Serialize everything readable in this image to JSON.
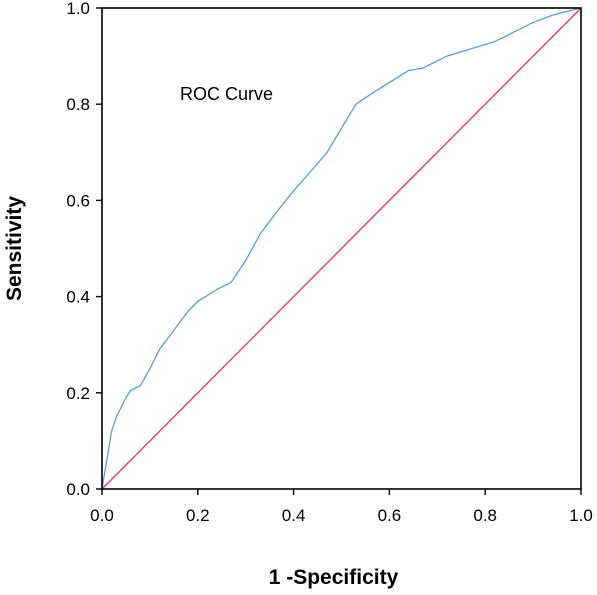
{
  "chart_data": {
    "type": "line",
    "title": "",
    "annotation": "ROC Curve",
    "xlabel": "1 -Specificity",
    "ylabel": "Sensitivity",
    "xlim": [
      0,
      1
    ],
    "ylim": [
      0,
      1
    ],
    "x_ticks": [
      "0.0",
      "0.2",
      "0.4",
      "0.6",
      "0.8",
      "1.0"
    ],
    "y_ticks": [
      "0.0",
      "0.2",
      "0.4",
      "0.6",
      "0.8",
      "1.0"
    ],
    "grid": false,
    "legend": "none",
    "series": [
      {
        "color": "#5b9bd5",
        "points": [
          [
            0,
            0
          ],
          [
            0.005,
            0.03
          ],
          [
            0.01,
            0.06
          ],
          [
            0.015,
            0.09
          ],
          [
            0.02,
            0.12
          ],
          [
            0.03,
            0.15
          ],
          [
            0.04,
            0.17
          ],
          [
            0.05,
            0.19
          ],
          [
            0.06,
            0.205
          ],
          [
            0.08,
            0.215
          ],
          [
            0.1,
            0.25
          ],
          [
            0.12,
            0.29
          ],
          [
            0.15,
            0.33
          ],
          [
            0.18,
            0.37
          ],
          [
            0.2,
            0.39
          ],
          [
            0.24,
            0.415
          ],
          [
            0.27,
            0.43
          ],
          [
            0.3,
            0.475
          ],
          [
            0.33,
            0.53
          ],
          [
            0.36,
            0.57
          ],
          [
            0.4,
            0.62
          ],
          [
            0.44,
            0.665
          ],
          [
            0.47,
            0.7
          ],
          [
            0.5,
            0.75
          ],
          [
            0.53,
            0.8
          ],
          [
            0.56,
            0.82
          ],
          [
            0.6,
            0.845
          ],
          [
            0.64,
            0.87
          ],
          [
            0.67,
            0.875
          ],
          [
            0.72,
            0.9
          ],
          [
            0.77,
            0.915
          ],
          [
            0.82,
            0.93
          ],
          [
            0.86,
            0.95
          ],
          [
            0.9,
            0.97
          ],
          [
            0.94,
            0.985
          ],
          [
            0.98,
            0.995
          ],
          [
            1,
            1
          ]
        ]
      },
      {
        "color": "#e0365f",
        "points": [
          [
            0,
            0
          ],
          [
            1,
            1
          ]
        ]
      }
    ],
    "frame_color": "#000000"
  }
}
